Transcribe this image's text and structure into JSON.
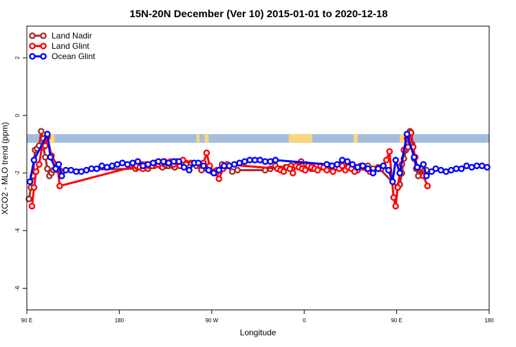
{
  "chart_data": {
    "type": "line",
    "title": "15N-20N December (Ver 10)   2015-01-01 to 2020-12-18",
    "xlabel": "Longitude",
    "ylabel": "XCO2 - MLO trend (ppm)",
    "xlim": [
      0,
      450
    ],
    "ylim": [
      -6.75,
      3.1
    ],
    "x_ticks": [
      {
        "value": 0,
        "label": "90 E"
      },
      {
        "value": 90,
        "label": "180"
      },
      {
        "value": 180,
        "label": "90 W"
      },
      {
        "value": 270,
        "label": "0"
      },
      {
        "value": 360,
        "label": "90 E"
      },
      {
        "value": 450,
        "label": "180"
      }
    ],
    "y_ticks": [
      {
        "value": 2,
        "label": "2"
      },
      {
        "value": 0,
        "label": "0"
      },
      {
        "value": -2,
        "label": "-2"
      },
      {
        "value": -4,
        "label": "-4"
      },
      {
        "value": -6,
        "label": "-6"
      }
    ],
    "map_band": {
      "y_top": -0.65,
      "y_bottom": -0.95,
      "ocean_color": "#a4bddc",
      "land_color": "#f9d77e",
      "land_segments": [
        [
          15,
          27
        ],
        [
          165,
          168
        ],
        [
          173,
          177
        ],
        [
          255,
          278
        ],
        [
          318,
          322
        ],
        [
          363,
          375
        ]
      ]
    },
    "legend": {
      "position": "top-left",
      "entries": [
        "Land Nadir",
        "Land Glint",
        "Ocean Glint"
      ]
    },
    "series": [
      {
        "name": "Land Nadir",
        "color": "#a52a2a",
        "x": [
          2,
          4,
          6,
          8,
          10,
          12,
          14,
          16,
          18,
          20,
          22,
          24,
          26,
          28,
          30,
          32,
          106,
          108,
          110,
          112,
          114,
          116,
          118,
          120,
          122,
          124,
          126,
          128,
          130,
          132,
          134,
          136,
          138,
          140,
          142,
          144,
          155,
          160,
          165,
          170,
          175,
          180,
          185,
          190,
          195,
          200,
          205,
          232,
          237,
          242,
          247,
          252,
          257,
          262,
          267,
          272,
          277,
          282,
          287,
          292,
          297,
          302,
          307,
          312,
          317,
          322,
          327,
          332,
          337,
          342,
          361,
          363,
          365,
          367,
          369,
          371,
          373,
          375,
          377,
          379,
          381,
          383,
          385,
          387,
          389
        ],
        "y": [
          -2.9,
          -2.5,
          -2.1,
          -1.2,
          -1.15,
          -1.05,
          -0.55,
          -1.1,
          -1.45,
          -1.85,
          -2.1,
          -2.0,
          -1.9,
          -1.85,
          -1.9,
          -1.9,
          -1.85,
          -1.8,
          -1.75,
          -1.7,
          -1.75,
          -1.8,
          -1.85,
          -1.75,
          -1.7,
          -1.75,
          -1.65,
          -1.7,
          -1.75,
          -1.8,
          -1.7,
          -1.75,
          -1.75,
          -1.7,
          -1.75,
          -1.8,
          -1.7,
          -1.65,
          -1.75,
          -1.9,
          -1.85,
          -1.95,
          -1.9,
          -1.7,
          -1.75,
          -1.95,
          -1.9,
          -1.9,
          -1.85,
          -1.75,
          -1.85,
          -1.8,
          -1.75,
          -1.75,
          -1.6,
          -1.7,
          -1.85,
          -1.75,
          -1.8,
          -1.7,
          -1.75,
          -1.8,
          -1.75,
          -1.8,
          -1.75,
          -1.9,
          -1.8,
          -1.75,
          -1.85,
          -1.8,
          -2.5,
          -2.4,
          -2.0,
          -1.5,
          -1.2,
          -1.1,
          -0.55,
          -1.0,
          -1.5,
          -1.85,
          -2.1,
          -1.9,
          -1.85,
          -1.9,
          -1.9
        ]
      },
      {
        "name": "Land Glint",
        "color": "#ff0000",
        "x": [
          5,
          7,
          9,
          12,
          16,
          18,
          20,
          24,
          30,
          32,
          107,
          110,
          113,
          116,
          119,
          122,
          125,
          128,
          131,
          134,
          137,
          140,
          143,
          146,
          149,
          152,
          168,
          172,
          175,
          178,
          181,
          184,
          187,
          191,
          195,
          244,
          247,
          250,
          253,
          256,
          259,
          262,
          265,
          268,
          271,
          274,
          277,
          280,
          283,
          286,
          289,
          292,
          295,
          298,
          301,
          304,
          307,
          310,
          313,
          316,
          319,
          322,
          325,
          328,
          331,
          334,
          345,
          347,
          350,
          353,
          357,
          359,
          361,
          363,
          365,
          367,
          370,
          374,
          376,
          378,
          380,
          386,
          390
        ],
        "y": [
          -3.15,
          -2.5,
          -1.95,
          -1.7,
          -0.8,
          -1.05,
          -0.75,
          -1.4,
          -1.75,
          -2.45,
          -1.75,
          -1.8,
          -1.85,
          -1.7,
          -1.75,
          -1.75,
          -1.65,
          -1.7,
          -1.65,
          -1.6,
          -1.65,
          -1.6,
          -1.7,
          -1.6,
          -1.75,
          -1.55,
          -1.7,
          -1.65,
          -1.3,
          -1.75,
          -1.95,
          -2.0,
          -2.2,
          -1.85,
          -1.7,
          -1.85,
          -1.9,
          -1.95,
          -1.8,
          -1.85,
          -2.0,
          -1.75,
          -1.8,
          -1.85,
          -1.9,
          -1.75,
          -1.8,
          -1.85,
          -1.9,
          -1.75,
          -1.8,
          -1.9,
          -1.75,
          -1.95,
          -1.8,
          -1.85,
          -1.75,
          -1.9,
          -1.8,
          -1.85,
          -1.95,
          -1.8,
          -1.75,
          -1.8,
          -1.85,
          -1.95,
          -1.85,
          -1.75,
          -1.55,
          -1.25,
          -2.85,
          -3.15,
          -2.5,
          -2.0,
          -1.7,
          -1.2,
          -0.8,
          -0.6,
          -1.1,
          -1.45,
          -1.8,
          -2.1,
          -2.45
        ]
      },
      {
        "name": "Ocean Glint",
        "color": "#0000ff",
        "x": [
          3,
          7,
          20,
          23,
          28,
          31,
          34,
          38,
          43,
          48,
          53,
          58,
          63,
          68,
          73,
          78,
          83,
          88,
          93,
          98,
          103,
          108,
          113,
          118,
          123,
          128,
          133,
          138,
          143,
          148,
          153,
          158,
          163,
          167,
          172,
          177,
          182,
          187,
          192,
          197,
          202,
          207,
          212,
          217,
          222,
          227,
          232,
          237,
          242,
          292,
          297,
          302,
          307,
          312,
          317,
          322,
          327,
          332,
          337,
          342,
          347,
          352,
          356,
          359,
          363,
          370,
          377,
          380,
          386,
          389,
          394,
          398,
          403,
          408,
          413,
          418,
          423,
          428,
          433,
          438,
          443,
          448
        ],
        "y": [
          -2.3,
          -1.55,
          -0.65,
          -1.45,
          -1.85,
          -1.7,
          -2.1,
          -1.9,
          -1.9,
          -1.95,
          -1.95,
          -1.9,
          -1.85,
          -1.85,
          -1.75,
          -1.8,
          -1.75,
          -1.7,
          -1.65,
          -1.7,
          -1.65,
          -1.6,
          -1.75,
          -1.7,
          -1.65,
          -1.6,
          -1.6,
          -1.65,
          -1.6,
          -1.6,
          -1.8,
          -1.9,
          -1.65,
          -1.65,
          -1.75,
          -1.9,
          -2.0,
          -1.9,
          -1.75,
          -1.75,
          -1.7,
          -1.65,
          -1.6,
          -1.55,
          -1.55,
          -1.55,
          -1.6,
          -1.6,
          -1.55,
          -1.7,
          -1.75,
          -1.7,
          -1.55,
          -1.6,
          -1.7,
          -1.8,
          -1.75,
          -1.85,
          -2.0,
          -1.85,
          -1.75,
          -1.9,
          -2.3,
          -1.55,
          -2.0,
          -0.65,
          -1.45,
          -1.8,
          -1.7,
          -2.1,
          -1.95,
          -1.85,
          -1.9,
          -1.95,
          -1.9,
          -1.85,
          -1.85,
          -1.75,
          -1.8,
          -1.75,
          -1.75,
          -1.8
        ]
      }
    ]
  }
}
